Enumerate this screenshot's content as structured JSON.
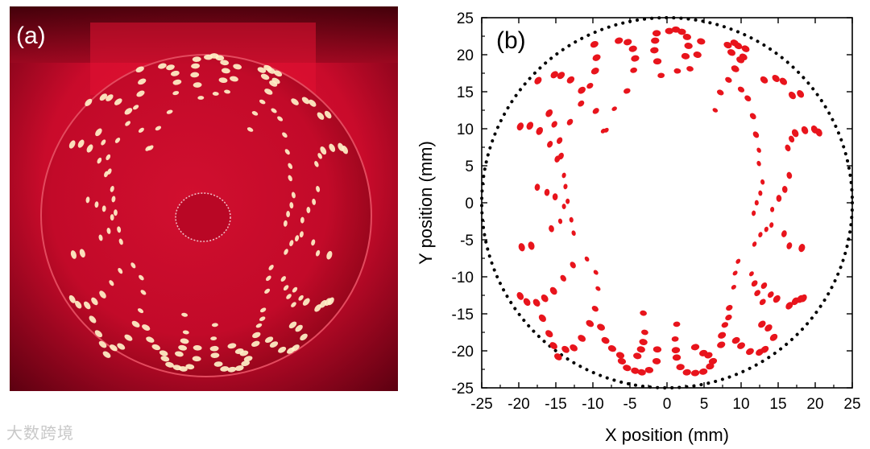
{
  "figure": {
    "panel_a_label": "(a)",
    "panel_b_label": "(b)",
    "watermark": "大数跨境"
  },
  "chart_data": {
    "type": "scatter",
    "xlabel": "X position (mm)",
    "ylabel": "Y position (mm)",
    "xlim": [
      -25,
      25
    ],
    "ylim": [
      -25,
      25
    ],
    "xticks": [
      -25,
      -20,
      -15,
      -10,
      -5,
      0,
      5,
      10,
      15,
      20,
      25
    ],
    "yticks": [
      -25,
      -20,
      -15,
      -10,
      -5,
      0,
      5,
      10,
      15,
      20,
      25
    ],
    "grid": false,
    "marker_color": "#e8141c",
    "boundary_circle": {
      "center": [
        0,
        0
      ],
      "radius": 25,
      "style": "dotted",
      "color": "#000000"
    },
    "hooks": 12,
    "points": [
      [
        0.3,
        23.2
      ],
      [
        1.2,
        23.4
      ],
      [
        2.0,
        23.1
      ],
      [
        2.7,
        22.4
      ],
      [
        2.9,
        21.2
      ],
      [
        2.5,
        19.8
      ],
      [
        1.4,
        17.8
      ],
      [
        -1.4,
        22.9
      ],
      [
        -1.6,
        21.9
      ],
      [
        -1.7,
        20.6
      ],
      [
        -1.3,
        19.1
      ],
      [
        -0.8,
        17.2
      ],
      [
        -6.5,
        21.9
      ],
      [
        -5.3,
        21.7
      ],
      [
        -4.6,
        20.8
      ],
      [
        -4.3,
        19.5
      ],
      [
        -4.5,
        17.9
      ],
      [
        -5.4,
        15.1
      ],
      [
        -7.1,
        12.7
      ],
      [
        -8.2,
        9.8
      ],
      [
        -9.8,
        21.4
      ],
      [
        -9.5,
        19.6
      ],
      [
        -9.7,
        17.8
      ],
      [
        -10.4,
        15.8
      ],
      [
        -11.6,
        13.4
      ],
      [
        -13.1,
        10.9
      ],
      [
        -15.2,
        17.3
      ],
      [
        -14.3,
        17.2
      ],
      [
        -13.0,
        16.6
      ],
      [
        -11.5,
        15.2
      ],
      [
        -9.6,
        12.4
      ],
      [
        -8.6,
        9.7
      ],
      [
        -17.4,
        16.5
      ],
      [
        -15.9,
        12.1
      ],
      [
        -15.2,
        10.6
      ],
      [
        -14.5,
        8.4
      ],
      [
        -14.3,
        6.3
      ],
      [
        -19.8,
        10.3
      ],
      [
        -18.5,
        10.4
      ],
      [
        -17.2,
        9.7
      ],
      [
        -15.8,
        7.9
      ],
      [
        -14.8,
        5.9
      ],
      [
        -13.9,
        3.7
      ],
      [
        -13.7,
        2.2
      ],
      [
        -13.4,
        0.2
      ],
      [
        -17.5,
        2.1
      ],
      [
        -16.2,
        1.4
      ],
      [
        -15.1,
        0.8
      ],
      [
        -13.9,
        -0.5
      ],
      [
        -12.9,
        -2.3
      ],
      [
        -12.6,
        -4.1
      ],
      [
        -19.6,
        -6.0
      ],
      [
        -18.3,
        -5.8
      ],
      [
        -15.6,
        -3.5
      ],
      [
        -14.4,
        -2.5
      ],
      [
        -19.8,
        -12.6
      ],
      [
        -18.9,
        -13.4
      ],
      [
        -17.6,
        -13.5
      ],
      [
        -16.5,
        -12.9
      ],
      [
        -15.3,
        -11.9
      ],
      [
        -14.0,
        -10.2
      ],
      [
        -12.7,
        -8.4
      ],
      [
        -16.8,
        -15.6
      ],
      [
        -15.9,
        -17.7
      ],
      [
        -15.3,
        -19.3
      ],
      [
        -14.7,
        -20.8
      ],
      [
        -13.7,
        -19.8
      ],
      [
        -12.6,
        -19.6
      ],
      [
        -11.5,
        -18.3
      ],
      [
        -10.4,
        -16.3
      ],
      [
        -9.7,
        -14.3
      ],
      [
        -9.3,
        -11.6
      ],
      [
        -9.6,
        -9.4
      ],
      [
        -10.8,
        -7.6
      ],
      [
        -8.9,
        -16.8
      ],
      [
        -8.3,
        -18.6
      ],
      [
        -7.4,
        -19.7
      ],
      [
        -6.3,
        -20.6
      ],
      [
        -3.2,
        -14.9
      ],
      [
        -3.0,
        -17.5
      ],
      [
        -3.2,
        -18.8
      ],
      [
        -3.5,
        -19.8
      ],
      [
        -4.0,
        -20.7
      ],
      [
        -6.1,
        -21.4
      ],
      [
        -5.4,
        -22.3
      ],
      [
        -4.3,
        -22.7
      ],
      [
        -3.4,
        -22.9
      ],
      [
        -2.4,
        -22.6
      ],
      [
        -1.4,
        -21.4
      ],
      [
        -1.3,
        -19.8
      ],
      [
        1.1,
        -18.4
      ],
      [
        1.2,
        -19.9
      ],
      [
        1.3,
        -20.9
      ],
      [
        1.8,
        -22.2
      ],
      [
        2.7,
        -22.9
      ],
      [
        3.8,
        -23.0
      ],
      [
        4.9,
        -22.8
      ],
      [
        5.8,
        -22.1
      ],
      [
        1.3,
        -16.4
      ],
      [
        3.8,
        -19.5
      ],
      [
        4.9,
        -20.3
      ],
      [
        5.6,
        -20.6
      ],
      [
        6.2,
        -21.4
      ],
      [
        7.3,
        -19.2
      ],
      [
        7.4,
        -17.9
      ],
      [
        7.8,
        -16.5
      ],
      [
        8.3,
        -15.5
      ],
      [
        8.4,
        -14.2
      ],
      [
        9.0,
        -11.4
      ],
      [
        9.2,
        -9.5
      ],
      [
        9.6,
        -7.9
      ],
      [
        9.3,
        -18.6
      ],
      [
        10.0,
        -19.3
      ],
      [
        11.2,
        -20.1
      ],
      [
        12.5,
        -20.2
      ],
      [
        13.2,
        -19.8
      ],
      [
        14.4,
        -18.2
      ],
      [
        13.7,
        -16.9
      ],
      [
        12.8,
        -16.4
      ],
      [
        12.9,
        -13.4
      ],
      [
        12.2,
        -12.2
      ],
      [
        11.8,
        -10.9
      ],
      [
        11.4,
        -9.6
      ],
      [
        16.5,
        -13.9
      ],
      [
        17.3,
        -13.3
      ],
      [
        18.0,
        -13.0
      ],
      [
        18.4,
        -12.9
      ],
      [
        14.8,
        -13.0
      ],
      [
        14.0,
        -12.4
      ],
      [
        13.1,
        -11.2
      ],
      [
        11.8,
        -5.6
      ],
      [
        12.6,
        -4.3
      ],
      [
        13.4,
        -3.6
      ],
      [
        14.1,
        -3.0
      ],
      [
        15.8,
        -4.2
      ],
      [
        16.5,
        -5.8
      ],
      [
        18.2,
        -6.1
      ],
      [
        11.7,
        -1.4
      ],
      [
        12.1,
        0.0
      ],
      [
        12.6,
        1.3
      ],
      [
        12.9,
        2.8
      ],
      [
        14.2,
        -0.9
      ],
      [
        15.1,
        0.6
      ],
      [
        15.9,
        1.8
      ],
      [
        16.5,
        3.7
      ],
      [
        16.3,
        7.4
      ],
      [
        16.8,
        8.6
      ],
      [
        17.3,
        9.4
      ],
      [
        18.6,
        9.8
      ],
      [
        19.9,
        9.9
      ],
      [
        20.5,
        9.5
      ],
      [
        12.4,
        5.3
      ],
      [
        12.4,
        7.1
      ],
      [
        12.0,
        9.2
      ],
      [
        11.6,
        11.7
      ],
      [
        10.9,
        14.1
      ],
      [
        10.0,
        15.3
      ],
      [
        13.1,
        16.6
      ],
      [
        14.7,
        16.8
      ],
      [
        15.7,
        16.4
      ],
      [
        16.9,
        14.5
      ],
      [
        18.0,
        14.7
      ],
      [
        6.5,
        12.5
      ],
      [
        7.2,
        14.9
      ],
      [
        8.3,
        16.6
      ],
      [
        9.2,
        18.1
      ],
      [
        9.9,
        19.3
      ],
      [
        10.6,
        20.8
      ],
      [
        8.2,
        21.3
      ],
      [
        9.1,
        21.6
      ],
      [
        9.6,
        21.2
      ],
      [
        10.3,
        19.7
      ],
      [
        8.7,
        20.3
      ],
      [
        3.1,
        18.1
      ],
      [
        4.1,
        20.0
      ],
      [
        4.6,
        21.8
      ]
    ]
  }
}
